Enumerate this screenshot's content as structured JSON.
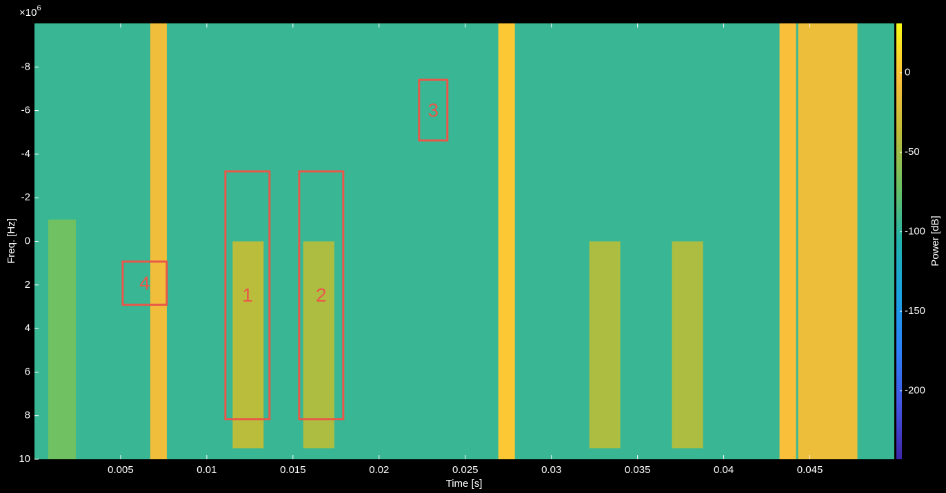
{
  "chart_data": {
    "type": "spectrogram",
    "x_label": "Time [s]",
    "y_label": "Freq. [Hz]",
    "y_multiplier": {
      "base": "×10",
      "exponent": "6"
    },
    "xlim": [
      0,
      0.0499
    ],
    "xticks": [
      0.005,
      0.01,
      0.015,
      0.02,
      0.025,
      0.03,
      0.035,
      0.04,
      0.045
    ],
    "ylim": [
      10,
      -10
    ],
    "yticks": [
      -8,
      -6,
      -4,
      -2,
      0,
      2,
      4,
      6,
      8,
      10
    ],
    "colormap": "parula",
    "colorbar_label": "Power [dB]",
    "clim": [
      -243,
      31
    ],
    "cticks": [
      0,
      -50,
      -100,
      -150,
      -200
    ],
    "background_power": -95,
    "bands": [
      {
        "t": [
          0.0008,
          0.0024
        ],
        "f": [
          -1,
          10
        ],
        "power": -70
      },
      {
        "t": [
          0.00672,
          0.00768
        ],
        "f": [
          -10,
          10
        ],
        "power": -10
      },
      {
        "t": [
          0.0115,
          0.0133
        ],
        "f": [
          0,
          9.5
        ],
        "power": -40
      },
      {
        "t": [
          0.0156,
          0.0174
        ],
        "f": [
          0,
          9.5
        ],
        "power": -45
      },
      {
        "t": [
          0.02692,
          0.02788
        ],
        "f": [
          -10,
          10
        ],
        "power": 2
      },
      {
        "t": [
          0.0322,
          0.034
        ],
        "f": [
          0,
          9.5
        ],
        "power": -45
      },
      {
        "t": [
          0.037,
          0.0388
        ],
        "f": [
          0,
          9.5
        ],
        "power": -45
      },
      {
        "t": [
          0.04324,
          0.0442
        ],
        "f": [
          -10,
          10
        ],
        "power": -5
      },
      {
        "t": [
          0.04432,
          0.04776
        ],
        "f": [
          -10,
          10
        ],
        "power": -12
      }
    ],
    "annotations": [
      {
        "label": "1",
        "t": [
          0.01108,
          0.01364
        ],
        "f": [
          -3.21,
          8.16
        ]
      },
      {
        "label": "2",
        "t": [
          0.01536,
          0.01792
        ],
        "f": [
          -3.21,
          8.16
        ]
      },
      {
        "label": "3",
        "t": [
          0.02232,
          0.02396
        ],
        "f": [
          -7.41,
          -4.63
        ]
      },
      {
        "label": "4",
        "t": [
          0.00512,
          0.00768
        ],
        "f": [
          0.93,
          2.91
        ]
      }
    ]
  }
}
